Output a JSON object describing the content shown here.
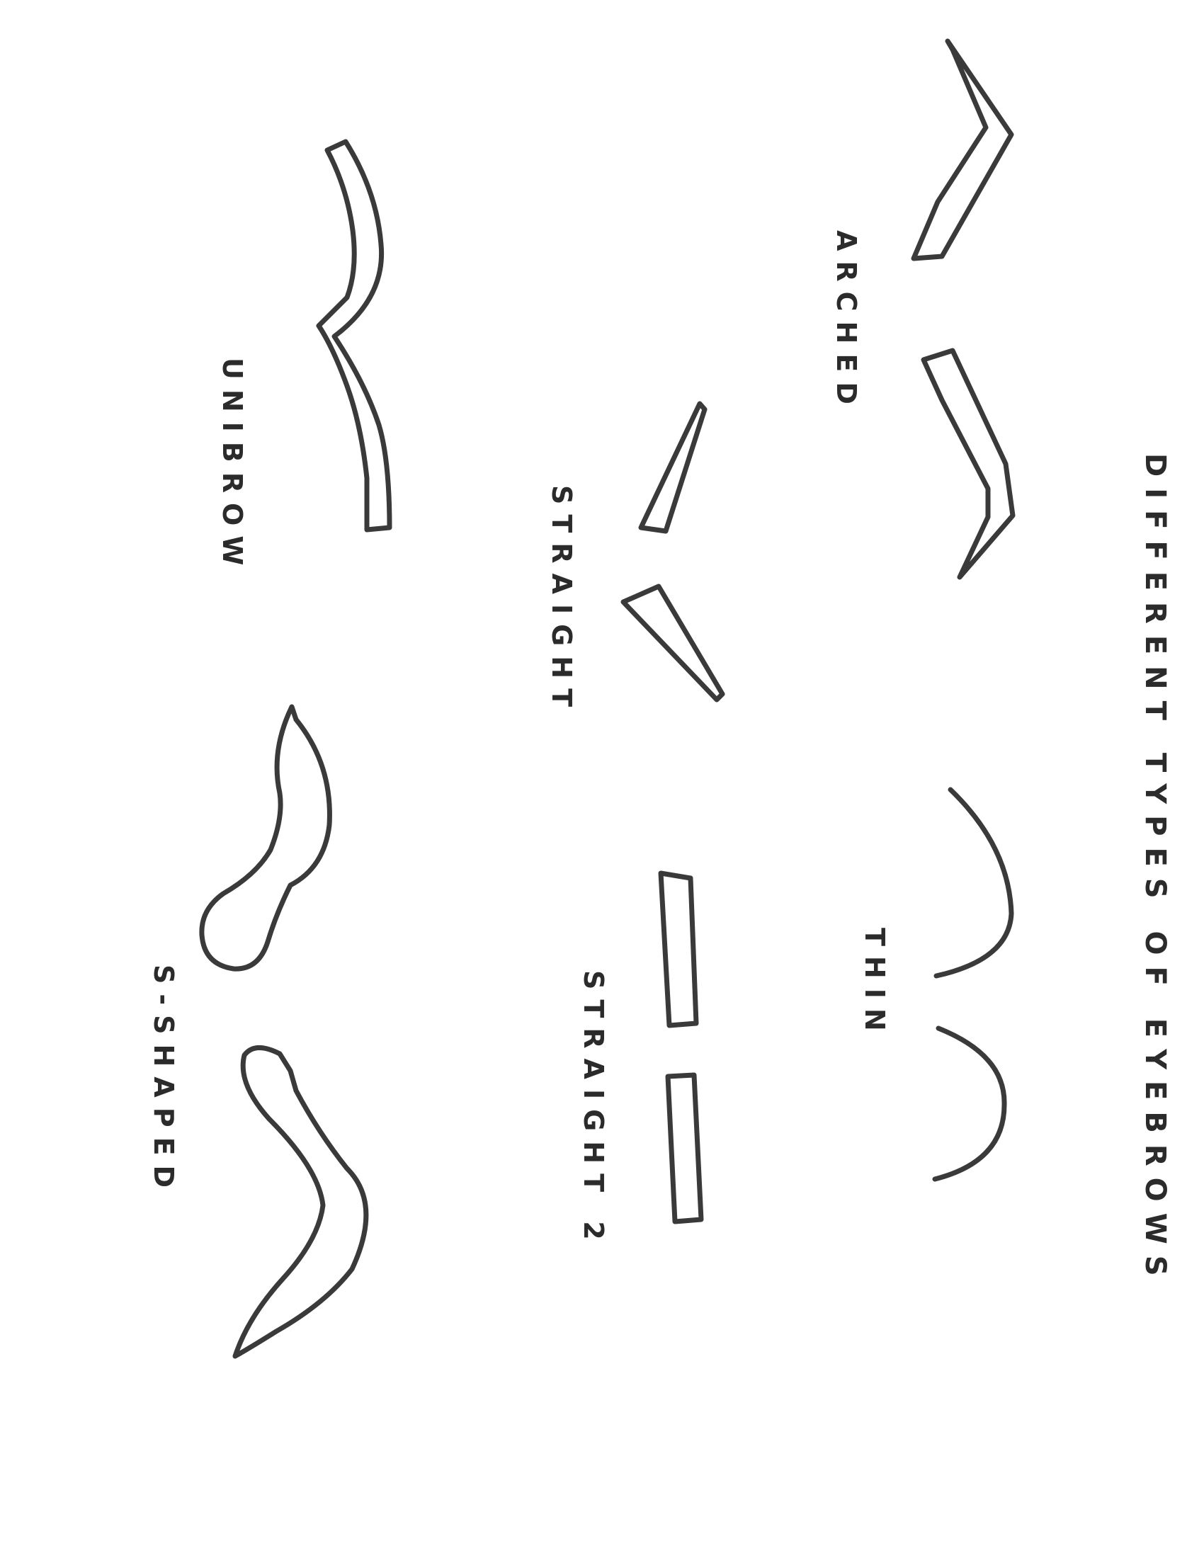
{
  "title": "DIFFERENT TYPES OF EYEBROWS",
  "labels": {
    "arched": "ARCHED",
    "thin": "THIN",
    "straight": "STRAIGHT",
    "straight2": "STRAIGHT 2",
    "unibrow": "UNIBROW",
    "s_shaped": "S-SHAPED"
  },
  "colors": {
    "ink": "#3a3a3a",
    "text": "#2b2b2b",
    "paper": "#ffffff"
  }
}
